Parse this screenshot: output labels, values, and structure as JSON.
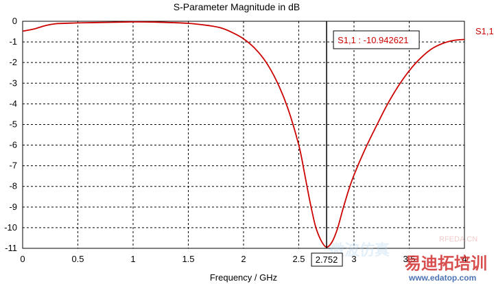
{
  "chart_data": {
    "type": "line",
    "title": "S-Parameter Magnitude in dB",
    "xlabel": "Frequency / GHz",
    "ylabel": "",
    "xlim": [
      0,
      4
    ],
    "ylim": [
      -11,
      0
    ],
    "x_ticks": [
      "0",
      "0.5",
      "1",
      "1.5",
      "2",
      "2.5",
      "3",
      "3.5",
      "4"
    ],
    "y_ticks": [
      "0",
      "-1",
      "-2",
      "-3",
      "-4",
      "-5",
      "-6",
      "-7",
      "-8",
      "-9",
      "-10",
      "-11"
    ],
    "grid": true,
    "series": [
      {
        "name": "S1,1",
        "color": "#cc0000",
        "x": [
          0,
          0.1,
          0.2,
          0.3,
          0.5,
          0.8,
          1.0,
          1.2,
          1.5,
          1.7,
          1.8,
          1.9,
          2.0,
          2.1,
          2.2,
          2.3,
          2.4,
          2.5,
          2.55,
          2.6,
          2.65,
          2.7,
          2.75,
          2.8,
          2.85,
          2.9,
          2.95,
          3.0,
          3.1,
          3.2,
          3.3,
          3.4,
          3.5,
          3.6,
          3.7,
          3.8,
          3.9,
          4.0
        ],
        "y": [
          -0.48,
          -0.38,
          -0.22,
          -0.12,
          -0.08,
          -0.05,
          -0.03,
          -0.04,
          -0.1,
          -0.22,
          -0.33,
          -0.55,
          -0.85,
          -1.3,
          -1.95,
          -2.9,
          -4.2,
          -6.0,
          -7.3,
          -8.7,
          -9.9,
          -10.6,
          -10.94,
          -10.7,
          -10.05,
          -9.1,
          -8.2,
          -7.45,
          -6.2,
          -5.1,
          -4.05,
          -3.15,
          -2.4,
          -1.8,
          -1.35,
          -1.08,
          -0.93,
          -0.88
        ]
      }
    ],
    "marker": {
      "label": "S1,1 : -10.942621",
      "x": 2.752,
      "y": -10.942621,
      "cursor_readout": "2.752"
    },
    "series_label": "S1,1"
  },
  "watermark": {
    "site_small": "RFEDA.CN",
    "site_url": "www.edatop.com",
    "cn_text": "易迪拓培训",
    "faint_text": "微波仿真"
  }
}
